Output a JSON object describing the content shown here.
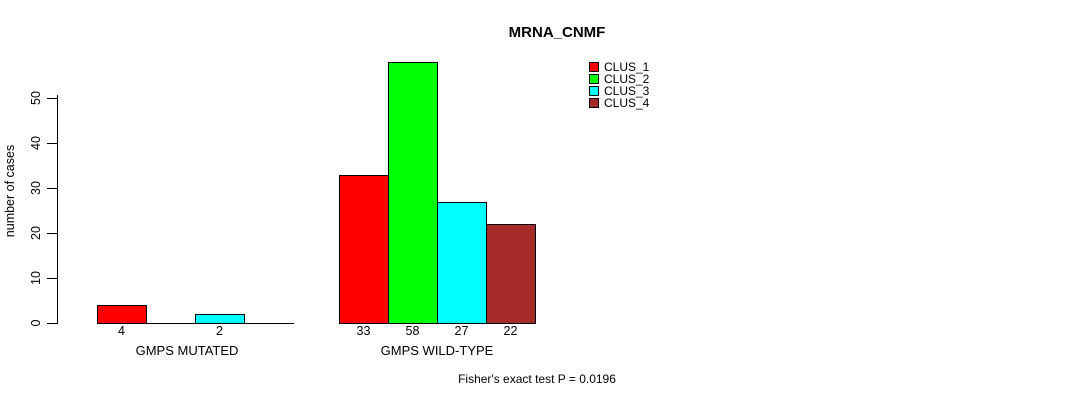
{
  "chart_data": {
    "type": "bar",
    "title": "MRNA_CNMF",
    "ylabel": "number of cases",
    "xlabel": "",
    "categories": [
      "GMPS MUTATED",
      "GMPS WILD-TYPE"
    ],
    "series": [
      {
        "name": "CLUS_1",
        "color": "#ff0000",
        "values": [
          4,
          33
        ]
      },
      {
        "name": "CLUS_2",
        "color": "#00ff00",
        "values": [
          0,
          58
        ]
      },
      {
        "name": "CLUS_3",
        "color": "#00ffff",
        "values": [
          2,
          27
        ]
      },
      {
        "name": "CLUS_4",
        "color": "#a52a2a",
        "values": [
          0,
          22
        ]
      }
    ],
    "bar_value_labels": {
      "GMPS MUTATED": [
        4,
        null,
        2,
        null
      ],
      "GMPS WILD-TYPE": [
        33,
        58,
        27,
        22
      ]
    },
    "yticks": [
      0,
      10,
      20,
      30,
      40,
      50
    ],
    "ylim": [
      0,
      58
    ],
    "grid": false,
    "legend": {
      "position": "top-right",
      "entries": [
        "CLUS_1",
        "CLUS_2",
        "CLUS_3",
        "CLUS_4"
      ],
      "colors": [
        "#ff0000",
        "#00ff00",
        "#00ffff",
        "#a52a2a"
      ]
    },
    "annotation": "Fisher's exact test P = 0.0196"
  }
}
